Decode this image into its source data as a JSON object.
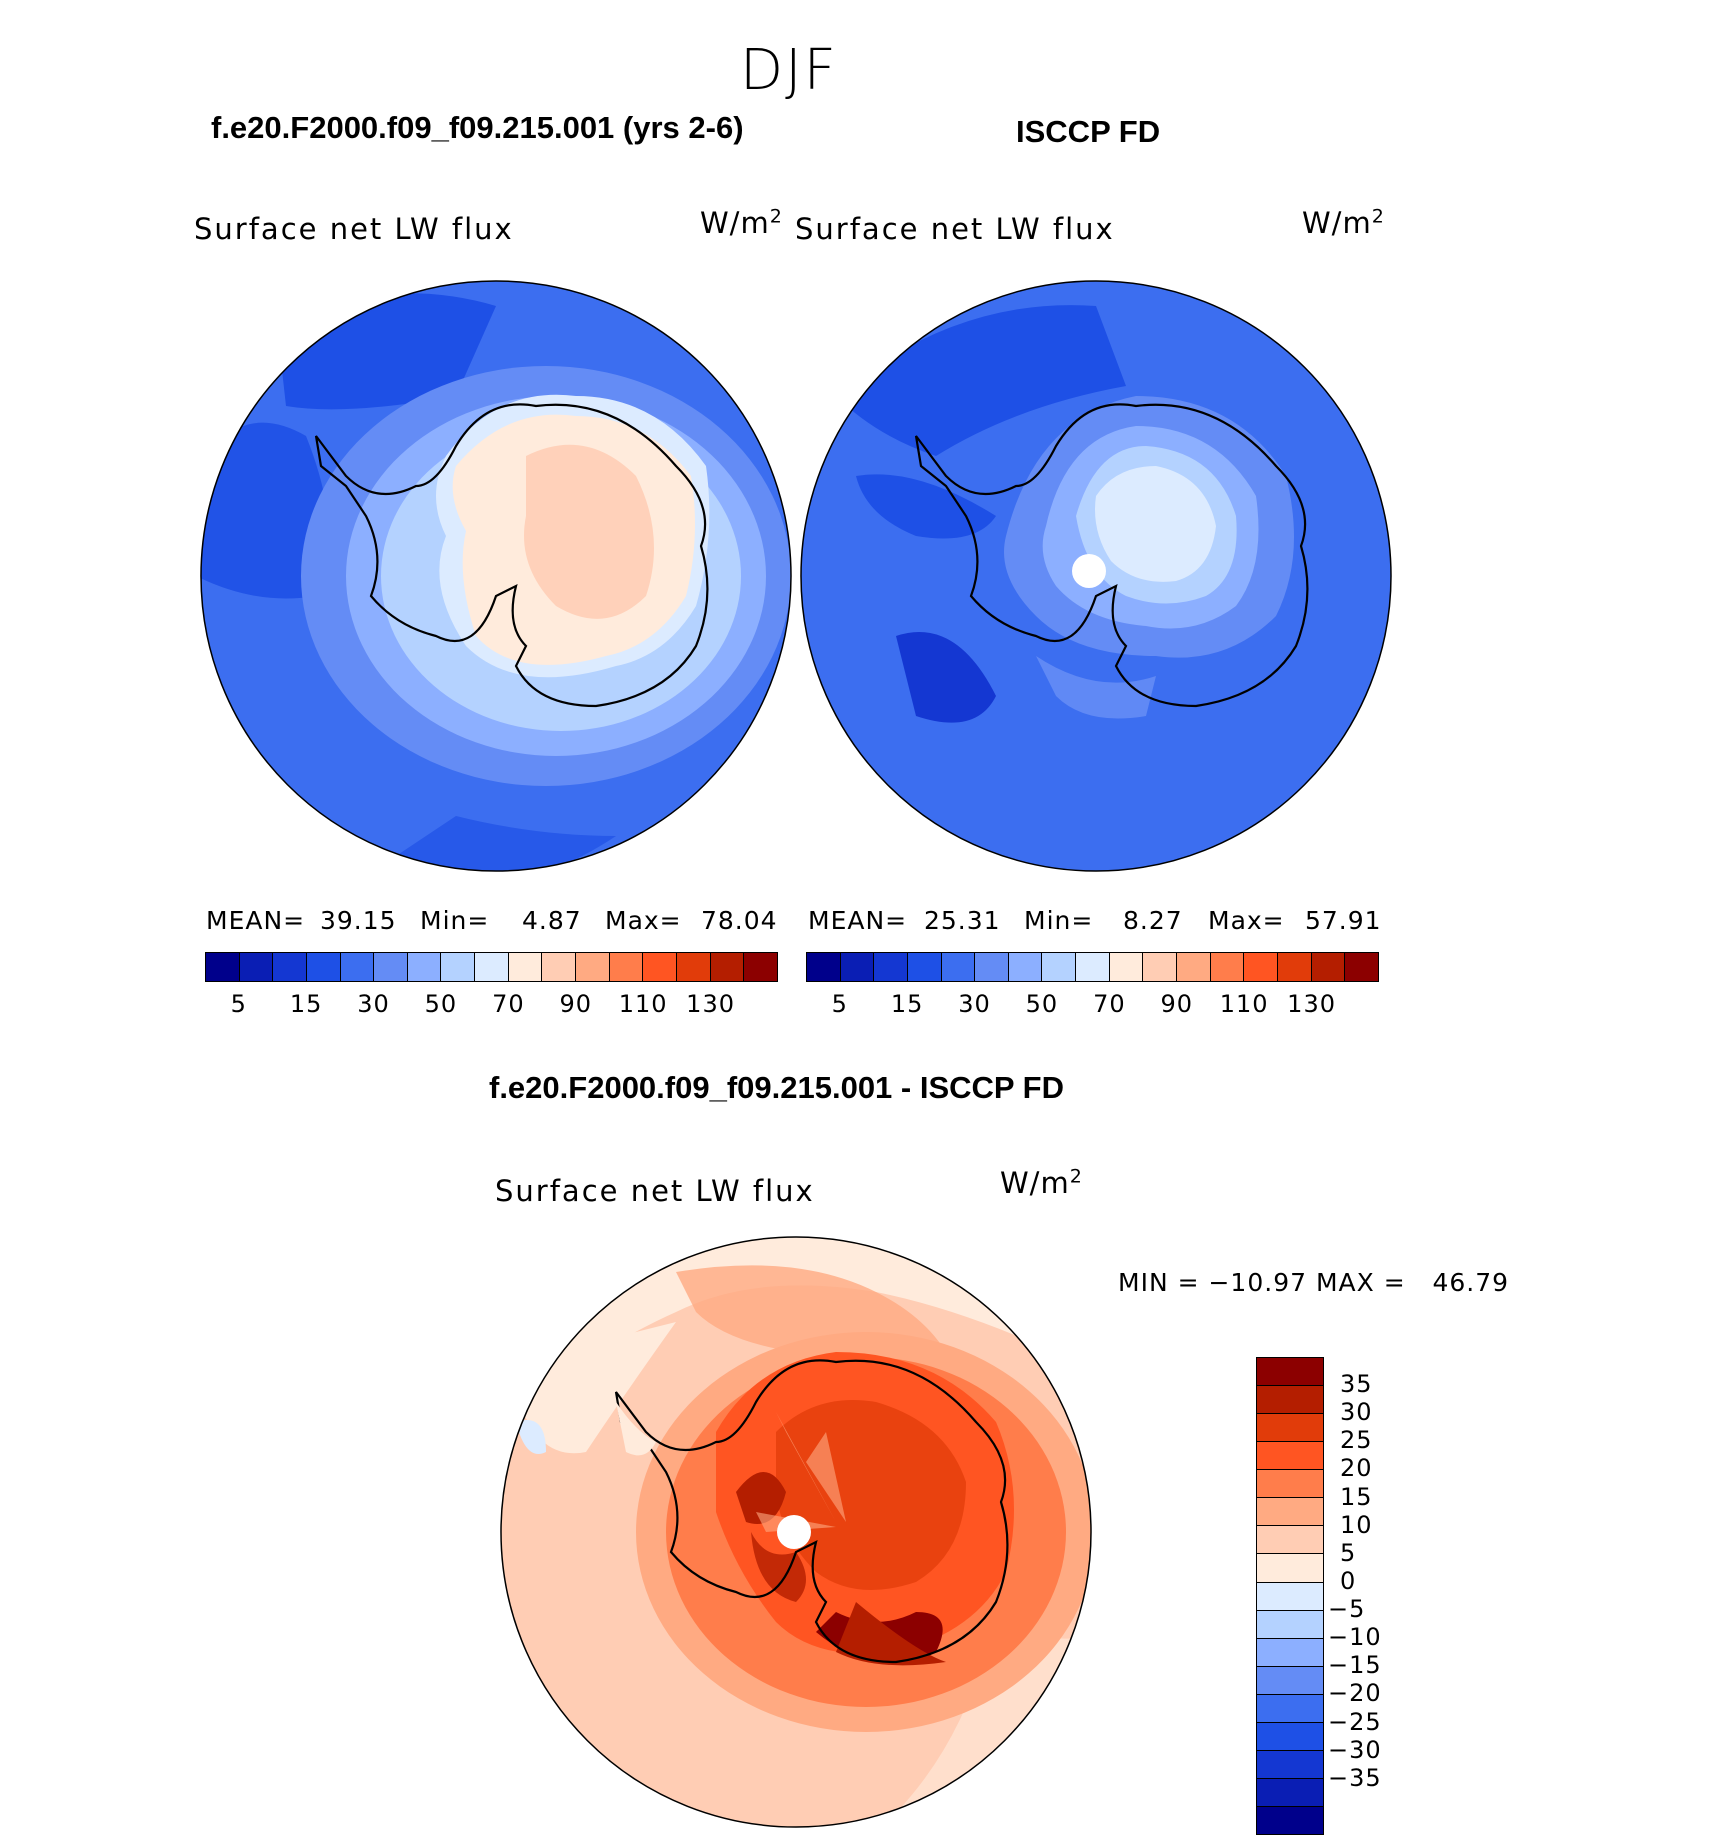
{
  "figure_title": "DJF",
  "panels": [
    {
      "case_title": "f.e20.F2000.f09_f09.215.001 (yrs 2-6)",
      "variable": "Surface net LW flux",
      "units_base": "W/m",
      "units_exp": "2",
      "stats": {
        "mean_label": "MEAN=",
        "mean": "39.15",
        "min_label": "Min=",
        "min": "4.87",
        "max_label": "Max=",
        "max": "78.04"
      }
    },
    {
      "case_title": "ISCCP FD",
      "variable": "Surface net LW flux",
      "units_base": "W/m",
      "units_exp": "2",
      "stats": {
        "mean_label": "MEAN=",
        "mean": "25.31",
        "min_label": "Min=",
        "min": "8.27",
        "max_label": "Max=",
        "max": "57.91"
      }
    },
    {
      "case_title": "f.e20.F2000.f09_f09.215.001 - ISCCP FD",
      "variable": "Surface net LW flux",
      "units_base": "W/m",
      "units_exp": "2",
      "stats_line": "MIN = −10.97 MAX =   46.79"
    }
  ],
  "colorbar_top": {
    "colors": [
      "#00008b",
      "#0a1eb4",
      "#1437d2",
      "#1e50e6",
      "#3c6ef0",
      "#648cf5",
      "#8cafff",
      "#b4d2ff",
      "#dcebff",
      "#ffebdc",
      "#ffcdb4",
      "#ffaa82",
      "#ff7d4b",
      "#ff5522",
      "#e13c0a",
      "#b41e00",
      "#8c0000"
    ],
    "tick_labels": [
      "5",
      "15",
      "30",
      "50",
      "70",
      "90",
      "110",
      "130"
    ]
  },
  "colorbar_diff": {
    "colors": [
      "#8c0000",
      "#b41e00",
      "#e13c0a",
      "#ff5522",
      "#ff7d4b",
      "#ffaa82",
      "#ffcdb4",
      "#ffebdc",
      "#dcebff",
      "#b4d2ff",
      "#8cafff",
      "#648cf5",
      "#3c6ef0",
      "#1e50e6",
      "#1437d2",
      "#0a1eb4",
      "#00008b"
    ],
    "tick_labels": [
      "35",
      "30",
      "25",
      "20",
      "15",
      "10",
      "5",
      "0",
      "−5",
      "−10",
      "−15",
      "−20",
      "−25",
      "−30",
      "−35"
    ]
  }
}
